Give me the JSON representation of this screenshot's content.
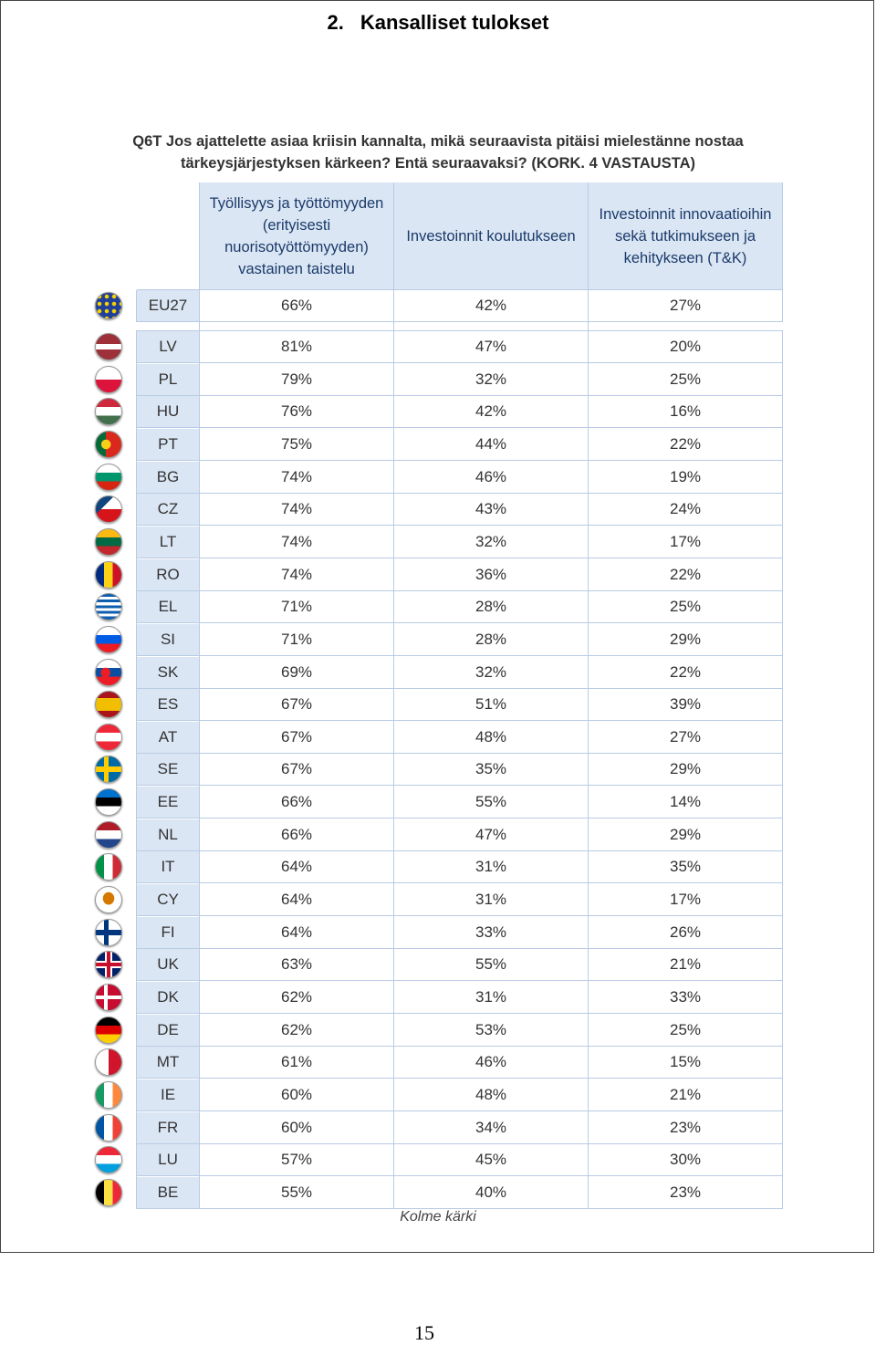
{
  "section": {
    "number": "2.",
    "title": "Kansalliset tulokset"
  },
  "question": "Q6T Jos ajattelette asiaa kriisin kannalta, mikä seuraavista pitäisi mielestänne nostaa tärkeysjärjestyksen kärkeen? Entä seuraavaksi? (KORK. 4 VASTAUSTA)",
  "columns": [
    "Työllisyys ja työttömyyden (erityisesti nuorisotyöttömyyden) vastainen taistelu",
    "Investoinnit koulutukseen",
    "Investoinnit innovaatioihin sekä tutkimukseen ja kehitykseen (T&K)"
  ],
  "rows": [
    {
      "country": "EU27",
      "flag": "eu-flag-icon",
      "values": [
        "66%",
        "42%",
        "27%"
      ]
    },
    {
      "country": "LV",
      "flag": "latvia-flag-icon",
      "values": [
        "81%",
        "47%",
        "20%"
      ]
    },
    {
      "country": "PL",
      "flag": "poland-flag-icon",
      "values": [
        "79%",
        "32%",
        "25%"
      ]
    },
    {
      "country": "HU",
      "flag": "hungary-flag-icon",
      "values": [
        "76%",
        "42%",
        "16%"
      ]
    },
    {
      "country": "PT",
      "flag": "portugal-flag-icon",
      "values": [
        "75%",
        "44%",
        "22%"
      ]
    },
    {
      "country": "BG",
      "flag": "bulgaria-flag-icon",
      "values": [
        "74%",
        "46%",
        "19%"
      ]
    },
    {
      "country": "CZ",
      "flag": "czechia-flag-icon",
      "values": [
        "74%",
        "43%",
        "24%"
      ]
    },
    {
      "country": "LT",
      "flag": "lithuania-flag-icon",
      "values": [
        "74%",
        "32%",
        "17%"
      ]
    },
    {
      "country": "RO",
      "flag": "romania-flag-icon",
      "values": [
        "74%",
        "36%",
        "22%"
      ]
    },
    {
      "country": "EL",
      "flag": "greece-flag-icon",
      "values": [
        "71%",
        "28%",
        "25%"
      ]
    },
    {
      "country": "SI",
      "flag": "slovenia-flag-icon",
      "values": [
        "71%",
        "28%",
        "29%"
      ]
    },
    {
      "country": "SK",
      "flag": "slovakia-flag-icon",
      "values": [
        "69%",
        "32%",
        "22%"
      ]
    },
    {
      "country": "ES",
      "flag": "spain-flag-icon",
      "values": [
        "67%",
        "51%",
        "39%"
      ]
    },
    {
      "country": "AT",
      "flag": "austria-flag-icon",
      "values": [
        "67%",
        "48%",
        "27%"
      ]
    },
    {
      "country": "SE",
      "flag": "sweden-flag-icon",
      "values": [
        "67%",
        "35%",
        "29%"
      ]
    },
    {
      "country": "EE",
      "flag": "estonia-flag-icon",
      "values": [
        "66%",
        "55%",
        "14%"
      ]
    },
    {
      "country": "NL",
      "flag": "netherlands-flag-icon",
      "values": [
        "66%",
        "47%",
        "29%"
      ]
    },
    {
      "country": "IT",
      "flag": "italy-flag-icon",
      "values": [
        "64%",
        "31%",
        "35%"
      ]
    },
    {
      "country": "CY",
      "flag": "cyprus-flag-icon",
      "values": [
        "64%",
        "31%",
        "17%"
      ]
    },
    {
      "country": "FI",
      "flag": "finland-flag-icon",
      "values": [
        "64%",
        "33%",
        "26%"
      ]
    },
    {
      "country": "UK",
      "flag": "uk-flag-icon",
      "values": [
        "63%",
        "55%",
        "21%"
      ]
    },
    {
      "country": "DK",
      "flag": "denmark-flag-icon",
      "values": [
        "62%",
        "31%",
        "33%"
      ]
    },
    {
      "country": "DE",
      "flag": "germany-flag-icon",
      "values": [
        "62%",
        "53%",
        "25%"
      ]
    },
    {
      "country": "MT",
      "flag": "malta-flag-icon",
      "values": [
        "61%",
        "46%",
        "15%"
      ]
    },
    {
      "country": "IE",
      "flag": "ireland-flag-icon",
      "values": [
        "60%",
        "48%",
        "21%"
      ]
    },
    {
      "country": "FR",
      "flag": "france-flag-icon",
      "values": [
        "60%",
        "34%",
        "23%"
      ]
    },
    {
      "country": "LU",
      "flag": "luxembourg-flag-icon",
      "values": [
        "57%",
        "45%",
        "30%"
      ]
    },
    {
      "country": "BE",
      "flag": "belgium-flag-icon",
      "values": [
        "55%",
        "40%",
        "23%"
      ]
    }
  ],
  "footer_note": "Kolme kärki",
  "page_number": "15",
  "colors": {
    "header_bg": "#dbe6f4",
    "header_text": "#1a3a6a",
    "grid_line": "#b9cbe4"
  }
}
